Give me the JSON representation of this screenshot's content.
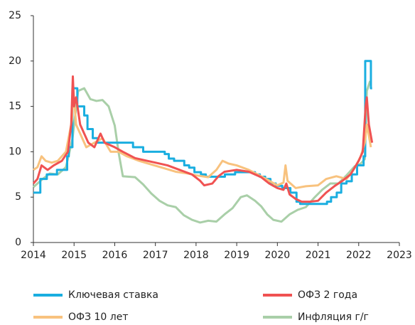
{
  "chart_data": {
    "type": "line",
    "xlim": [
      2014,
      2023
    ],
    "xticks": [
      2014,
      2015,
      2016,
      2017,
      2018,
      2019,
      2020,
      2021,
      2022,
      2023
    ],
    "ylim": [
      0,
      25
    ],
    "yticks": [
      0,
      5,
      10,
      15,
      20,
      25
    ],
    "legend": "bottom",
    "series": [
      {
        "name": "Ключевая ставка",
        "color": "#1aaee0",
        "step": true,
        "x": [
          2014.0,
          2014.17,
          2014.33,
          2014.58,
          2014.83,
          2014.87,
          2014.96,
          2015.08,
          2015.25,
          2015.33,
          2015.46,
          2015.58,
          2016.45,
          2016.7,
          2017.23,
          2017.33,
          2017.46,
          2017.71,
          2017.83,
          2017.96,
          2018.12,
          2018.24,
          2018.71,
          2018.96,
          2019.45,
          2019.57,
          2019.7,
          2019.83,
          2019.96,
          2020.12,
          2020.32,
          2020.47,
          2020.56,
          2021.22,
          2021.32,
          2021.46,
          2021.57,
          2021.7,
          2021.83,
          2021.96,
          2022.12,
          2022.16,
          2022.3,
          2022.33
        ],
        "values": [
          5.5,
          7,
          7.5,
          8,
          9.5,
          10.5,
          17,
          15,
          14,
          12.5,
          11.5,
          11,
          10.5,
          10,
          9.75,
          9.25,
          9,
          8.5,
          8.25,
          7.75,
          7.5,
          7.25,
          7.5,
          7.75,
          7.5,
          7.25,
          7,
          6.5,
          6.25,
          6,
          5.5,
          4.5,
          4.25,
          4.5,
          5,
          5.5,
          6.5,
          6.75,
          7.5,
          8.5,
          9.5,
          20,
          17,
          17
        ]
      },
      {
        "name": "ОФЗ 2 года",
        "color": "#f05252",
        "step": false,
        "x": [
          2014.0,
          2014.1,
          2014.2,
          2014.35,
          2014.5,
          2014.7,
          2014.85,
          2014.93,
          2014.97,
          2015.0,
          2015.05,
          2015.15,
          2015.25,
          2015.35,
          2015.5,
          2015.65,
          2015.75,
          2016.0,
          2016.2,
          2016.5,
          2016.8,
          2017.0,
          2017.3,
          2017.6,
          2017.9,
          2018.1,
          2018.2,
          2018.4,
          2018.55,
          2018.7,
          2019.0,
          2019.3,
          2019.6,
          2019.8,
          2020.0,
          2020.15,
          2020.22,
          2020.3,
          2020.45,
          2020.6,
          2020.8,
          2021.0,
          2021.2,
          2021.4,
          2021.6,
          2021.8,
          2022.0,
          2022.1,
          2022.17,
          2022.2,
          2022.25,
          2022.33
        ],
        "values": [
          6.5,
          7,
          8.5,
          8,
          8.5,
          9,
          10,
          13,
          18.3,
          15,
          16,
          13,
          12,
          11,
          10.5,
          12,
          11,
          10.5,
          10,
          9.3,
          9,
          8.8,
          8.5,
          8,
          7.5,
          6.8,
          6.3,
          6.5,
          7.3,
          7.8,
          8,
          7.8,
          7.2,
          6.5,
          6,
          5.8,
          6.5,
          5.3,
          4.8,
          4.5,
          4.5,
          4.6,
          5.5,
          6.2,
          6.8,
          7.5,
          9,
          10,
          15,
          16,
          13,
          11
        ]
      },
      {
        "name": "ОФЗ 10 лет",
        "color": "#f8c27e",
        "step": false,
        "x": [
          2014.0,
          2014.1,
          2014.2,
          2014.3,
          2014.45,
          2014.6,
          2014.8,
          2014.95,
          2014.98,
          2015.05,
          2015.15,
          2015.3,
          2015.5,
          2015.7,
          2015.9,
          2016.1,
          2016.3,
          2016.6,
          2016.9,
          2017.2,
          2017.5,
          2017.8,
          2018.0,
          2018.3,
          2018.5,
          2018.65,
          2018.8,
          2019.0,
          2019.3,
          2019.6,
          2019.8,
          2020.0,
          2020.15,
          2020.2,
          2020.25,
          2020.45,
          2020.7,
          2021.0,
          2021.2,
          2021.45,
          2021.7,
          2021.9,
          2022.05,
          2022.15,
          2022.2,
          2022.3
        ],
        "values": [
          8,
          8.3,
          9.5,
          9,
          8.8,
          9,
          10,
          13.5,
          17,
          13,
          12,
          10.5,
          11,
          11.5,
          10,
          10,
          9.5,
          9,
          8.6,
          8.2,
          7.8,
          7.6,
          7.4,
          7.2,
          8,
          9,
          8.7,
          8.5,
          8,
          7.3,
          6.8,
          6.3,
          6.6,
          8.5,
          6.8,
          6,
          6.2,
          6.3,
          7,
          7.3,
          7,
          8.2,
          9.5,
          11,
          13,
          10.5
        ]
      },
      {
        "name": "Инфляция г/г",
        "color": "#a9cfa8",
        "step": false,
        "x": [
          2014.0,
          2014.2,
          2014.4,
          2014.6,
          2014.8,
          2014.96,
          2015.1,
          2015.25,
          2015.4,
          2015.55,
          2015.7,
          2015.85,
          2016.0,
          2016.1,
          2016.2,
          2016.5,
          2016.7,
          2016.9,
          2017.1,
          2017.3,
          2017.5,
          2017.7,
          2017.9,
          2018.1,
          2018.3,
          2018.5,
          2018.7,
          2018.9,
          2019.1,
          2019.25,
          2019.45,
          2019.6,
          2019.75,
          2019.9,
          2020.1,
          2020.3,
          2020.5,
          2020.7,
          2020.9,
          2021.1,
          2021.3,
          2021.5,
          2021.7,
          2021.9,
          2022.05,
          2022.15,
          2022.2,
          2022.28
        ],
        "values": [
          6.1,
          6.9,
          7.6,
          7.5,
          8.3,
          11.4,
          16.7,
          17,
          15.8,
          15.6,
          15.7,
          15,
          12.9,
          9.8,
          7.3,
          7.2,
          6.4,
          5.4,
          4.6,
          4.1,
          3.9,
          3,
          2.5,
          2.2,
          2.4,
          2.3,
          3.1,
          3.8,
          5,
          5.2,
          4.6,
          4,
          3.1,
          2.5,
          2.3,
          3.1,
          3.6,
          3.9,
          4.9,
          5.8,
          6.5,
          6.5,
          7.4,
          8.4,
          8.7,
          9.2,
          16.7,
          17.8
        ]
      }
    ]
  }
}
